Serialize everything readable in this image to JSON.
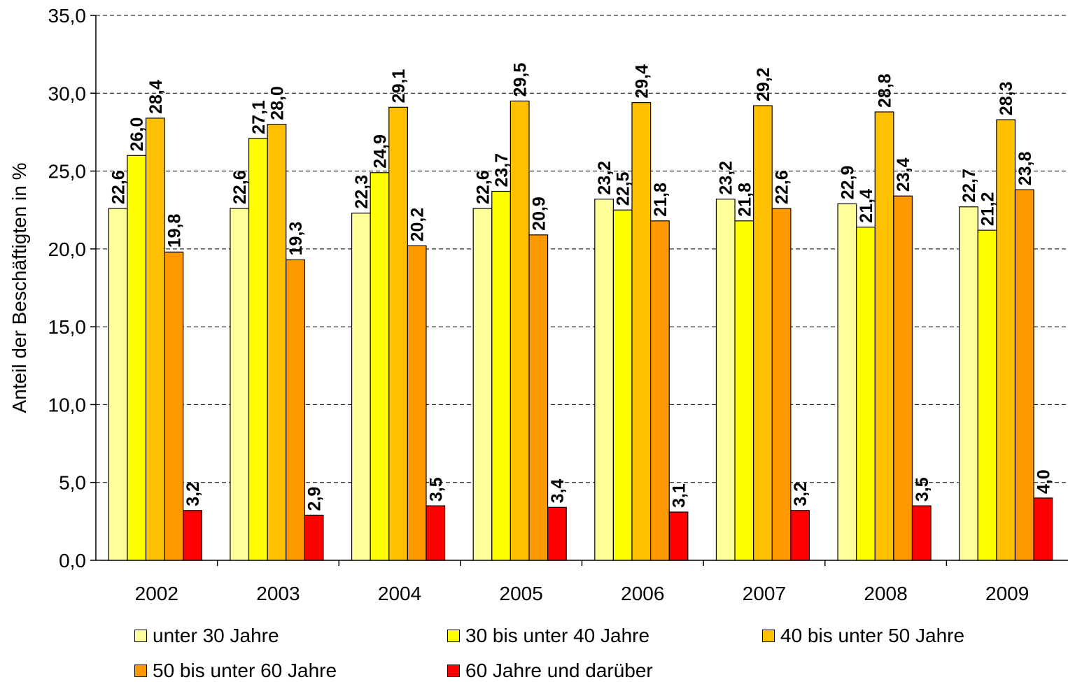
{
  "chart_data": {
    "type": "bar",
    "ylabel": "Anteil der Beschäftigten in %",
    "xlabel": "",
    "ylim": [
      0,
      35
    ],
    "yticks": [
      "0,0",
      "5,0",
      "10,0",
      "15,0",
      "20,0",
      "25,0",
      "30,0",
      "35,0"
    ],
    "grid": "dashed horizontal",
    "legend_position": "bottom",
    "categories": [
      "2002",
      "2003",
      "2004",
      "2005",
      "2006",
      "2007",
      "2008",
      "2009"
    ],
    "series": [
      {
        "name": "unter 30 Jahre",
        "color": "#FFFF99",
        "values": [
          22.6,
          22.6,
          22.3,
          22.6,
          23.2,
          23.2,
          22.9,
          22.7
        ],
        "labels": [
          "22,6",
          "22,6",
          "22,3",
          "22,6",
          "23,2",
          "23,2",
          "22,9",
          "22,7"
        ]
      },
      {
        "name": "30 bis unter 40 Jahre",
        "color": "#FFFF00",
        "values": [
          26.0,
          27.1,
          24.9,
          23.7,
          22.5,
          21.8,
          21.4,
          21.2
        ],
        "labels": [
          "26,0",
          "27,1",
          "24,9",
          "23,7",
          "22,5",
          "21,8",
          "21,4",
          "21,2"
        ]
      },
      {
        "name": "40 bis unter 50 Jahre",
        "color": "#FFC000",
        "values": [
          28.4,
          28.0,
          29.1,
          29.5,
          29.4,
          29.2,
          28.8,
          28.3
        ],
        "labels": [
          "28,4",
          "28,0",
          "29,1",
          "29,5",
          "29,4",
          "29,2",
          "28,8",
          "28,3"
        ]
      },
      {
        "name": "50 bis unter 60 Jahre",
        "color": "#FF9900",
        "values": [
          19.8,
          19.3,
          20.2,
          20.9,
          21.8,
          22.6,
          23.4,
          23.8
        ],
        "labels": [
          "19,8",
          "19,3",
          "20,2",
          "20,9",
          "21,8",
          "22,6",
          "23,4",
          "23,8"
        ]
      },
      {
        "name": "60 Jahre und darüber",
        "color": "#FF0000",
        "values": [
          3.2,
          2.9,
          3.5,
          3.4,
          3.1,
          3.2,
          3.5,
          4.0
        ],
        "labels": [
          "3,2",
          "2,9",
          "3,5",
          "3,4",
          "3,1",
          "3,2",
          "3,5",
          "4,0"
        ]
      }
    ]
  }
}
